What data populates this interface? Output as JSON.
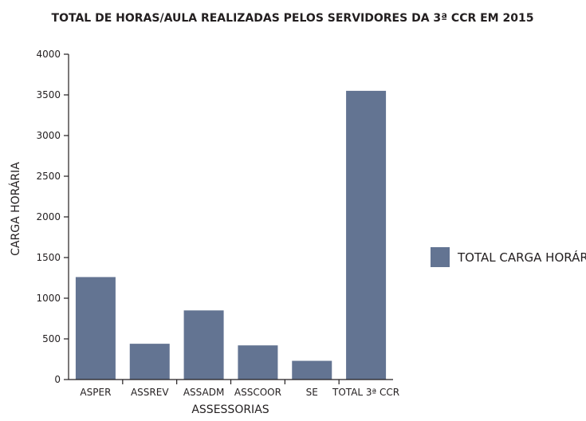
{
  "chart_data": {
    "type": "bar",
    "title": "TOTAL DE HORAS/AULA REALIZADAS PELOS SERVIDORES DA 3ª CCR EM 2015",
    "xlabel": "ASSESSORIAS",
    "ylabel": "CARGA HORÁRIA",
    "categories": [
      "ASPER",
      "ASSREV",
      "ASSADM",
      "ASSCOOR",
      "SE",
      "TOTAL 3ª CCR"
    ],
    "series": [
      {
        "name": "TOTAL CARGA HORÁRIA",
        "values": [
          1260,
          440,
          850,
          420,
          230,
          3550
        ]
      }
    ],
    "ylim": [
      0,
      4000
    ],
    "yticks": [
      0,
      500,
      1000,
      1500,
      2000,
      2500,
      3000,
      3500,
      4000
    ],
    "grid": false,
    "legend_position": "right",
    "bar_color": "#637492"
  }
}
